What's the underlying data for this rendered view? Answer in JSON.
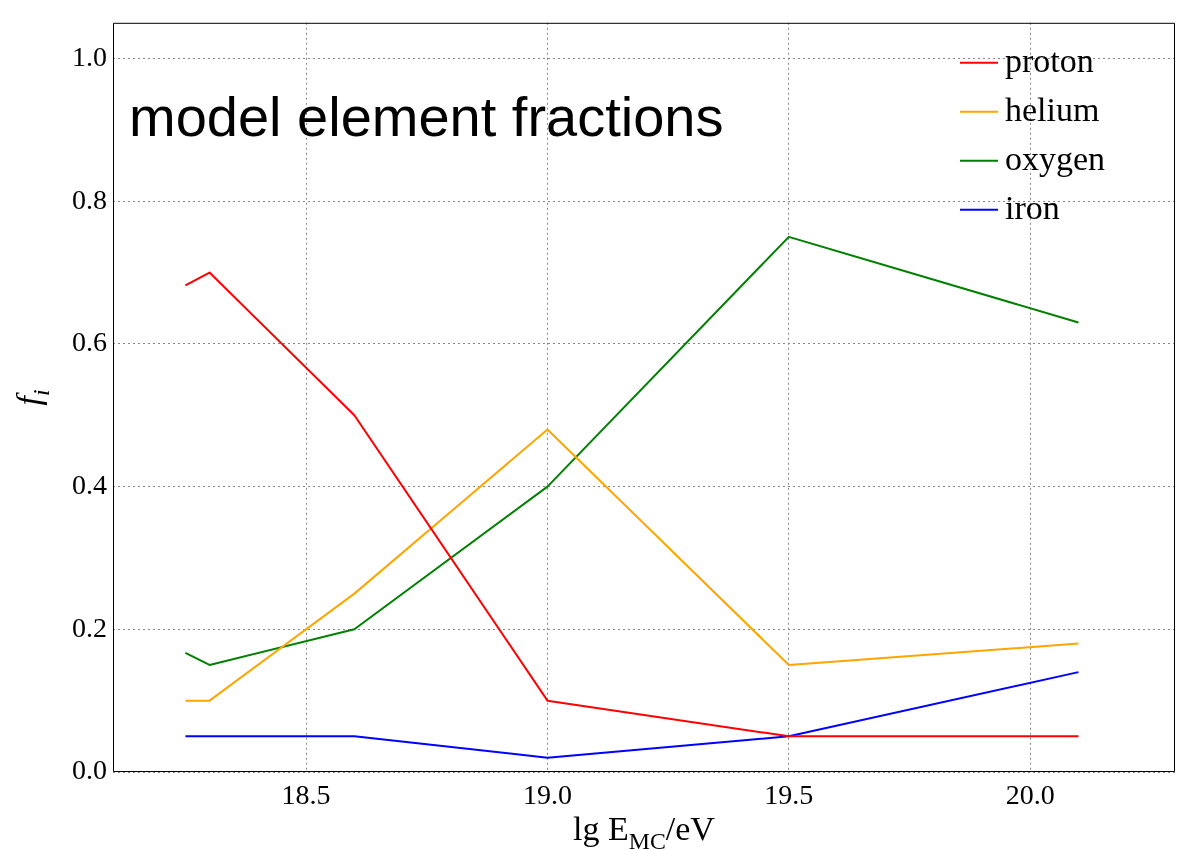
{
  "chart_data": {
    "type": "line",
    "title": "model element fractions",
    "xlabel": "lg E$_{MC}$/eV",
    "ylabel": "f$_{i}$",
    "x": [
      18.25,
      18.3,
      18.6,
      19.0,
      19.5,
      20.1
    ],
    "series": [
      {
        "name": "proton",
        "color": "#ff0000",
        "values": [
          0.682,
          0.7,
          0.5,
          0.1,
          0.05,
          0.05
        ]
      },
      {
        "name": "helium",
        "color": "#ffa500",
        "values": [
          0.1,
          0.1,
          0.25,
          0.48,
          0.15,
          0.18
        ]
      },
      {
        "name": "oxygen",
        "color": "#008000",
        "values": [
          0.167,
          0.15,
          0.2,
          0.4,
          0.75,
          0.63
        ]
      },
      {
        "name": "iron",
        "color": "#0000ff",
        "values": [
          0.05,
          0.05,
          0.05,
          0.02,
          0.05,
          0.14
        ]
      }
    ],
    "xlim": [
      18.1,
      20.3
    ],
    "xticks": [
      {
        "value": 18.5,
        "label": "18.5"
      },
      {
        "value": 19.0,
        "label": "19.0"
      },
      {
        "value": 19.5,
        "label": "19.5"
      },
      {
        "value": 20.0,
        "label": "20.0"
      }
    ],
    "ylim": [
      0,
      1.05
    ],
    "yticks": [
      {
        "value": 0,
        "label": "0.0"
      },
      {
        "value": 0.2,
        "label": "0.2"
      },
      {
        "value": 0.4,
        "label": "0.4"
      },
      {
        "value": 0.6,
        "label": "0.6"
      },
      {
        "value": 0.8,
        "label": "0.8"
      },
      {
        "value": 1.0,
        "label": "1.0"
      }
    ],
    "grid": true,
    "legend": "top right",
    "marker": "none",
    "line_style": "solid"
  }
}
